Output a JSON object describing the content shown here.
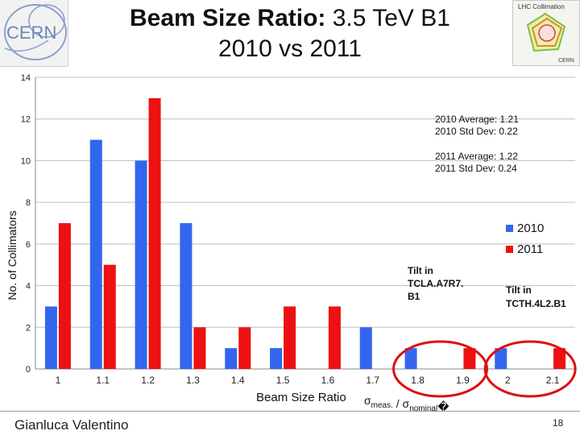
{
  "slide": {
    "title_bold": "Beam Size Ratio:",
    "title_rest": "3.5 TeV B1",
    "title_line2": "2010 vs 2011",
    "presenter": "Gianluca Valentino",
    "page_number": "18",
    "logos": {
      "left": "CERN",
      "right_line1": "LHC Collimation",
      "right_line2": "CERN"
    }
  },
  "colors": {
    "series_2010": "#3366ee",
    "series_2011": "#ee1111",
    "annotation_circle": "#dd1111"
  },
  "chart_data": {
    "type": "bar",
    "categories": [
      "1",
      "1.1",
      "1.2",
      "1.3",
      "1.4",
      "1.5",
      "1.6",
      "1.7",
      "1.8",
      "1.9",
      "2",
      "2.1"
    ],
    "series": [
      {
        "name": "2010",
        "values": [
          3,
          11,
          10,
          7,
          1,
          1,
          0,
          2,
          1,
          0,
          1,
          0
        ]
      },
      {
        "name": "2011",
        "values": [
          7,
          5,
          13,
          2,
          2,
          3,
          3,
          0,
          0,
          1,
          0,
          1
        ]
      }
    ],
    "ylim": [
      0,
      14
    ],
    "yticks": [
      0,
      2,
      4,
      6,
      8,
      10,
      12,
      14
    ],
    "ylabel": "No. of Collimators",
    "xlabel": "Beam Size Ratio",
    "xlabel_formula": {
      "sigma": "σ",
      "sub1": "meas.",
      "slash": " / ",
      "sub2": "nominal",
      "tail": "�"
    },
    "grid": true,
    "legend_position": "right",
    "stats": [
      {
        "line1": "2010 Average:  1.21",
        "line2": "2010 Std Dev:  0.22"
      },
      {
        "line1": "2011 Average:  1.22",
        "line2": "2011 Std Dev:   0.24"
      }
    ],
    "annotations": [
      {
        "lines": [
          "Tilt in",
          "TCLA.A7R7.",
          "B1"
        ],
        "category_range": [
          "1.8",
          "1.9"
        ]
      },
      {
        "lines": [
          "Tilt in",
          "TCTH.4L2.B1"
        ],
        "category_range": [
          "2",
          "2.1"
        ]
      }
    ]
  }
}
